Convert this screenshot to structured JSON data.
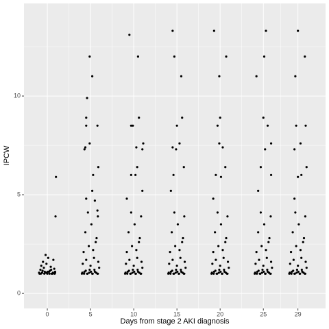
{
  "chart_data": {
    "type": "scatter",
    "x_label": "Days from stage 2 AKI diagnosis",
    "y_label": "IPCW",
    "color": "#000000",
    "grid": true,
    "xlim": [
      -2.7,
      32.2
    ],
    "xticks": [
      0,
      5,
      10,
      15,
      20,
      25,
      29
    ],
    "ylim": [
      -0.76,
      14.69
    ],
    "yticks": [
      0,
      5,
      10
    ],
    "x": [
      -0.9,
      -0.6,
      -0.3,
      0,
      0.3,
      0.6,
      0.9,
      -0.8,
      -0.4,
      0.2,
      0.5,
      0.8,
      -0.7,
      -0.1,
      0.4,
      -0.5,
      0.1,
      0.7,
      -0.2,
      0.9,
      0.95,
      1,
      -0.95,
      -0.75,
      -0.55,
      -0.35,
      -0.15,
      0.05,
      0.25,
      0.45,
      0.65,
      0.85,
      4,
      4.3,
      4.6,
      4.9,
      5.2,
      5.5,
      5.8,
      6,
      4.1,
      4.5,
      5,
      5.4,
      5.9,
      4.2,
      4.8,
      5.3,
      5.7,
      4.4,
      5.1,
      5.6,
      4.7,
      5.85,
      4.05,
      4.25,
      4.45,
      4.65,
      4.85,
      5.05,
      5.25,
      5.45,
      5.65,
      5.85,
      4.5,
      5.2,
      5.3,
      5.9,
      4.3,
      4.4,
      4.9,
      4.5,
      4.5,
      5.8,
      4.6,
      5.2,
      4.9,
      5.8,
      5.5,
      9,
      9.3,
      9.6,
      9.9,
      10.2,
      10.5,
      10.8,
      11,
      9.1,
      9.5,
      10,
      10.4,
      10.9,
      9.2,
      9.8,
      10.3,
      10.7,
      9.4,
      10.1,
      10.6,
      9.7,
      10.85,
      9.05,
      9.25,
      9.45,
      9.65,
      9.85,
      10.05,
      10.25,
      10.45,
      10.65,
      10.85,
      9.5,
      10.5,
      10.6,
      9.7,
      9.9,
      11.1,
      10.3,
      11,
      10.4,
      9.7,
      10.2,
      11,
      9.2,
      14,
      14.3,
      14.6,
      14.9,
      15.2,
      15.5,
      15.8,
      16,
      14.1,
      14.5,
      15,
      15.4,
      15.9,
      14.2,
      14.8,
      15.3,
      15.7,
      14.4,
      15.1,
      15.6,
      14.7,
      15.85,
      14.05,
      14.25,
      14.45,
      14.65,
      14.85,
      15.05,
      15.25,
      15.45,
      15.65,
      15.85,
      14.5,
      14.7,
      15.5,
      15.6,
      15,
      15.3,
      14.5,
      14.9,
      15.8,
      14.6,
      14.3,
      19,
      19.3,
      19.6,
      19.9,
      20.2,
      20.5,
      20.8,
      21,
      19.1,
      19.5,
      20,
      20.4,
      20.9,
      19.2,
      19.8,
      20.3,
      20.7,
      19.4,
      20.1,
      20.6,
      19.7,
      20.85,
      19.05,
      19.25,
      19.45,
      19.65,
      19.85,
      20.05,
      20.25,
      20.45,
      20.65,
      20.85,
      19.3,
      20.7,
      19.9,
      20,
      19.7,
      19.9,
      20.3,
      20.6,
      19.5,
      20.1,
      19.2,
      24,
      24.3,
      24.6,
      24.9,
      25.2,
      25.5,
      25.8,
      26,
      24.1,
      24.5,
      25,
      25.4,
      25.9,
      24.2,
      24.8,
      25.3,
      25.7,
      24.4,
      25.1,
      25.6,
      24.7,
      25.85,
      24.05,
      24.25,
      24.45,
      24.65,
      24.85,
      25.05,
      25.25,
      25.45,
      25.65,
      25.85,
      25.3,
      25.1,
      24.2,
      25,
      25.5,
      25.9,
      25.2,
      24.7,
      25.9,
      24.4,
      28,
      28.3,
      28.6,
      28.9,
      29.2,
      29.5,
      29.8,
      30,
      28.1,
      28.5,
      29,
      29.4,
      29.9,
      28.2,
      28.8,
      29.3,
      29.7,
      28.4,
      29.1,
      29.6,
      28.7,
      29.85,
      28.05,
      28.25,
      28.45,
      28.65,
      28.85,
      29.05,
      29.25,
      29.45,
      29.65,
      29.85,
      29,
      29.8,
      28.7,
      28.8,
      29.9,
      29.3,
      28.6,
      30,
      29.4,
      29,
      28.6
    ],
    "values": [
      1,
      1.05,
      1.1,
      1,
      1.15,
      1,
      1.05,
      1.2,
      1.3,
      1.1,
      1,
      1.25,
      1.4,
      1.5,
      1.35,
      1.6,
      1.8,
      1.7,
      1.95,
      1.1,
      3.9,
      5.9,
      1.05,
      1,
      1.15,
      1,
      1.05,
      1.1,
      1,
      1.2,
      1.05,
      1,
      1,
      1.1,
      1,
      1.2,
      1,
      1.1,
      1,
      1.3,
      1.5,
      1.7,
      1.4,
      1.8,
      1.6,
      2.1,
      2.4,
      2.2,
      2.8,
      3.1,
      3.5,
      2.6,
      4.1,
      3.9,
      1.05,
      1,
      1.15,
      1,
      1.05,
      1.1,
      1,
      1.2,
      1.05,
      1,
      4.8,
      5.2,
      6,
      6.4,
      7.3,
      7.4,
      7.6,
      8.5,
      8.9,
      8.5,
      9.9,
      11,
      12,
      4.2,
      4.7,
      1,
      1.1,
      1,
      1.2,
      1,
      1.1,
      1,
      1.3,
      1.5,
      1.7,
      1.4,
      1.8,
      1.6,
      2.1,
      2.4,
      2.2,
      2.8,
      3.1,
      3.5,
      2.6,
      4.1,
      3.9,
      1.05,
      1,
      1.15,
      1,
      1.05,
      1.1,
      1,
      1.2,
      1.05,
      1,
      13.1,
      12,
      8.9,
      8.5,
      8.5,
      7.6,
      7.4,
      7.3,
      6.4,
      6,
      6,
      5.2,
      4.8,
      1,
      1.1,
      1,
      1.2,
      1,
      1.1,
      1,
      1.3,
      1.5,
      1.7,
      1.4,
      1.8,
      1.6,
      2.1,
      2.4,
      2.2,
      2.8,
      3.1,
      3.5,
      2.6,
      4.1,
      3.9,
      1.05,
      1,
      1.15,
      1,
      1.05,
      1.1,
      1,
      1.2,
      1.05,
      1,
      13.3,
      12,
      11,
      8.9,
      8.5,
      7.6,
      7.4,
      7.3,
      6.4,
      6,
      5.2,
      1,
      1.1,
      1,
      1.2,
      1,
      1.1,
      1,
      1.3,
      1.5,
      1.7,
      1.4,
      1.8,
      1.6,
      2.1,
      2.4,
      2.2,
      2.8,
      3.1,
      3.5,
      2.6,
      4.1,
      3.9,
      1.05,
      1,
      1.15,
      1,
      1.05,
      1.1,
      1,
      1.2,
      1.05,
      1,
      13.3,
      12,
      11,
      8.9,
      8.5,
      7.6,
      7.4,
      6.4,
      6,
      5.9,
      4.8,
      1,
      1.1,
      1,
      1.2,
      1,
      1.1,
      1,
      1.3,
      1.5,
      1.7,
      1.4,
      1.8,
      1.6,
      2.1,
      2.4,
      2.2,
      2.8,
      3.1,
      3.5,
      2.6,
      4.1,
      3.9,
      1.05,
      1,
      1.15,
      1,
      1.05,
      1.1,
      1,
      1.2,
      1.05,
      1,
      13.3,
      12,
      11,
      8.9,
      8.5,
      7.6,
      7.3,
      6.4,
      6,
      5.2,
      1,
      1.1,
      1,
      1.2,
      1,
      1.1,
      1,
      1.3,
      1.5,
      1.7,
      1.4,
      1.8,
      1.6,
      2.1,
      2.4,
      2.2,
      2.8,
      3.1,
      3.5,
      2.6,
      4.1,
      3.9,
      1.05,
      1,
      1.15,
      1,
      1.05,
      1.1,
      1,
      1.2,
      1.05,
      1,
      13.3,
      12,
      11,
      8.5,
      8.5,
      7.6,
      7.3,
      6.4,
      6,
      5.9,
      4.8
    ]
  }
}
